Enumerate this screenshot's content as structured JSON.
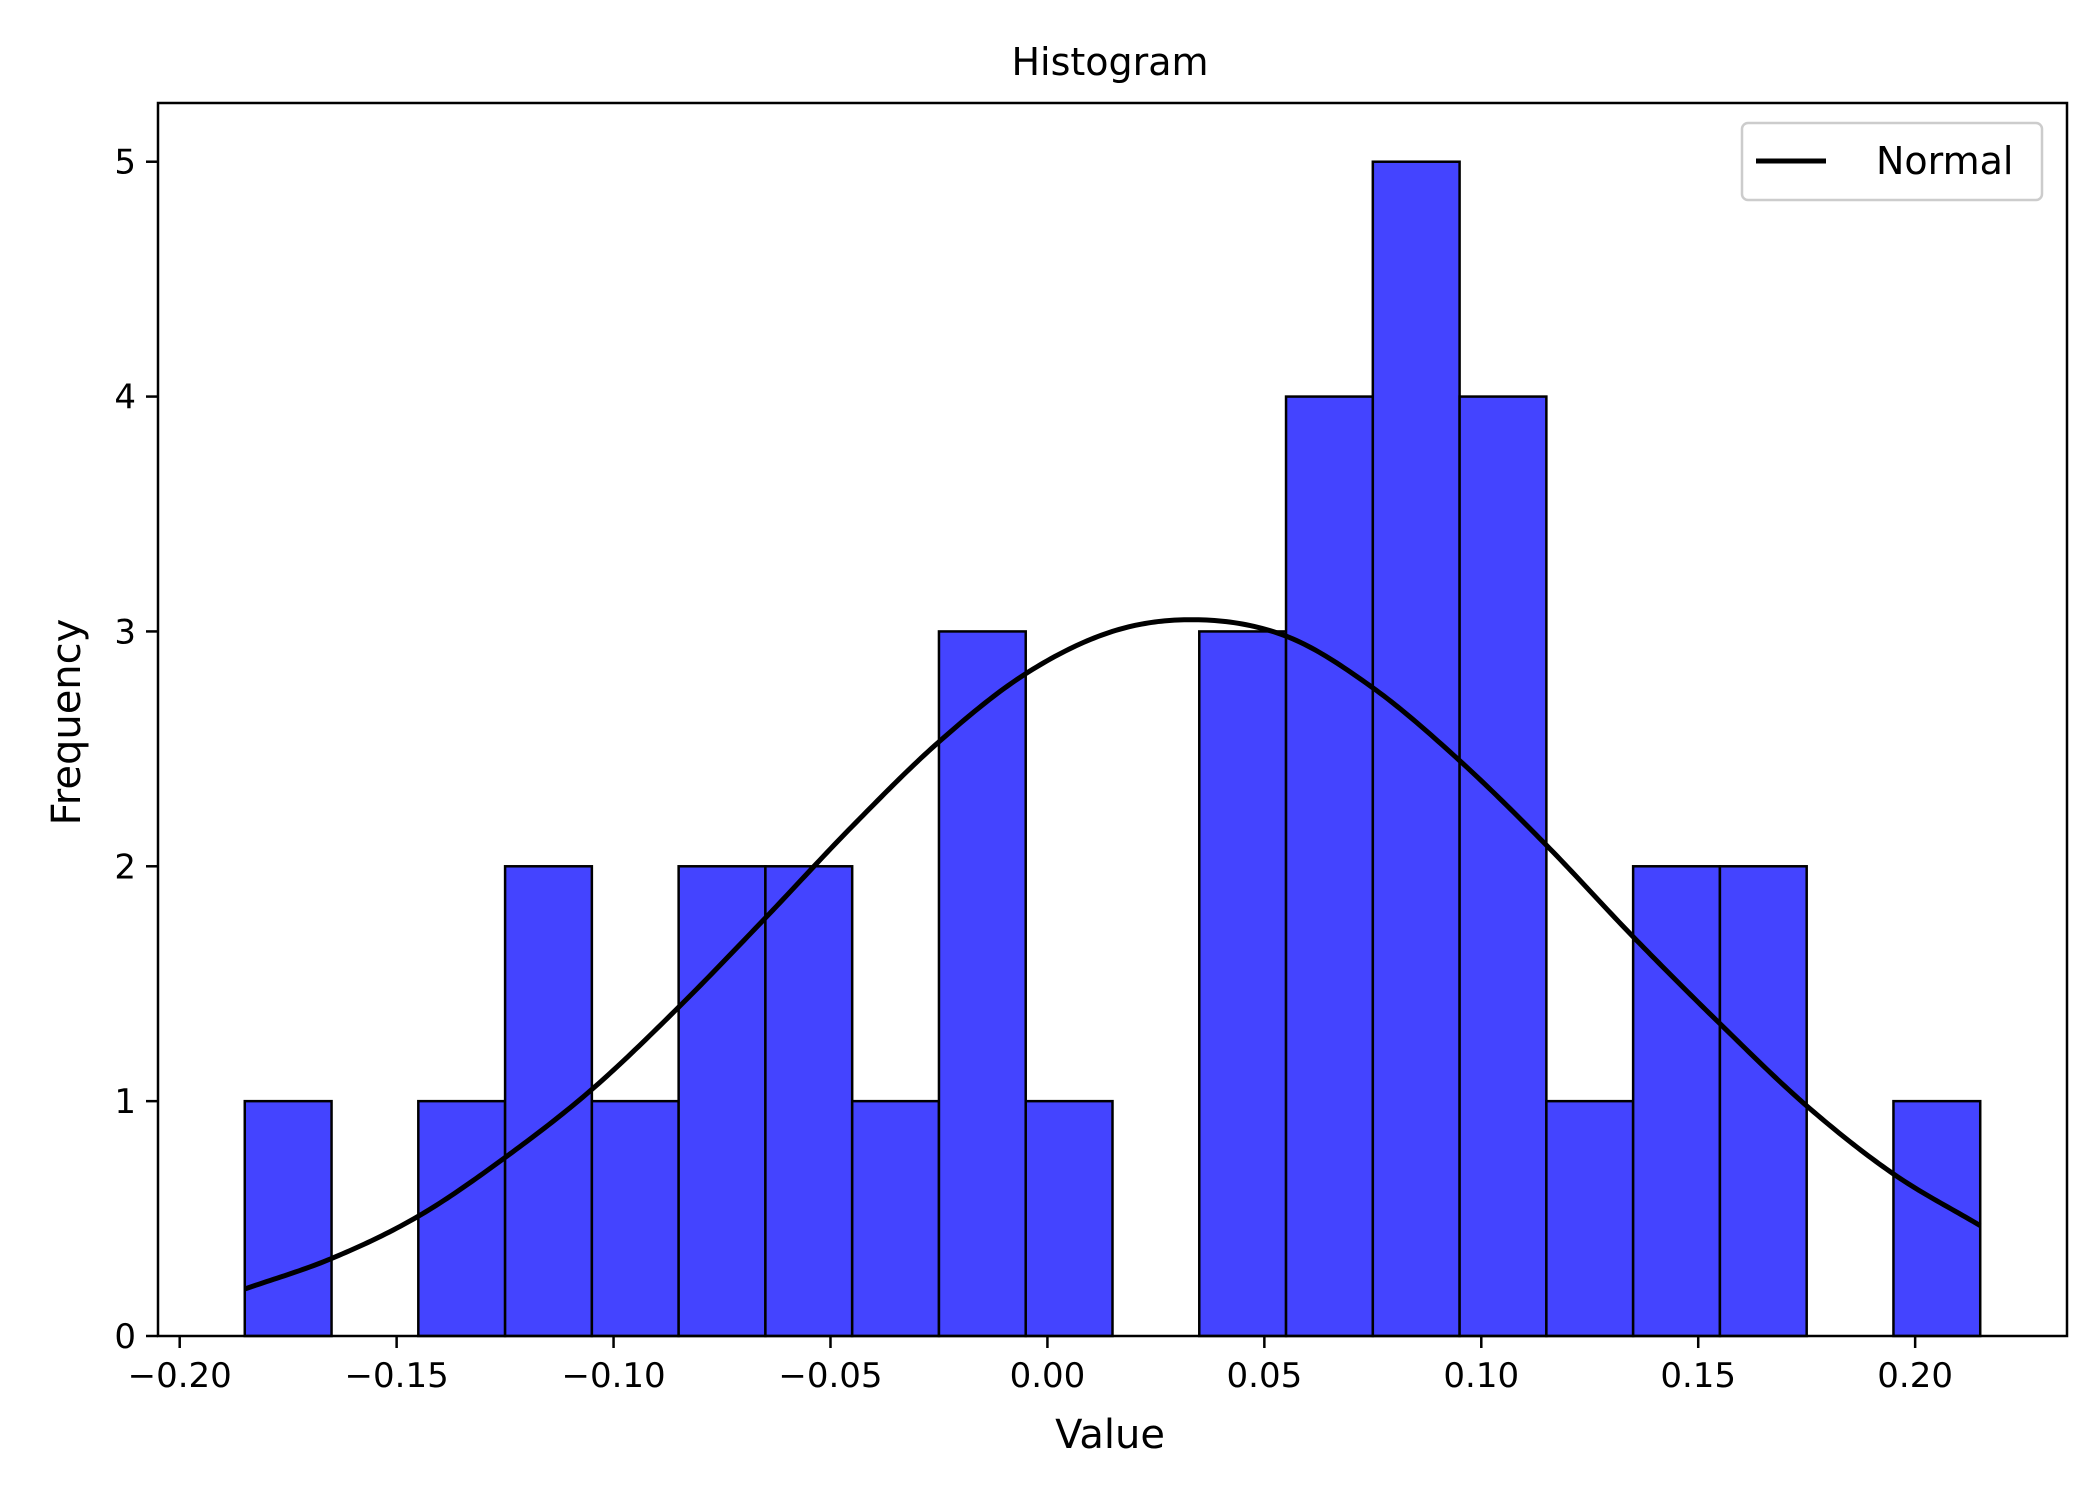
{
  "chart_data": {
    "type": "bar",
    "title": "Histogram",
    "xlabel": "Value",
    "ylabel": "Frequency",
    "xlim": [
      -0.205,
      0.235
    ],
    "ylim": [
      0,
      5.25
    ],
    "grid": false,
    "legend_placement": "top-right",
    "bar_color": "#4444ff",
    "bar_edge_color": "#000000",
    "bin_edges": [
      -0.185,
      -0.165,
      -0.145,
      -0.125,
      -0.105,
      -0.085,
      -0.065,
      -0.045,
      -0.025,
      -0.005,
      0.015,
      0.035,
      0.055,
      0.075,
      0.095,
      0.115,
      0.135,
      0.155,
      0.175,
      0.195,
      0.215
    ],
    "counts": [
      1,
      0,
      1,
      2,
      1,
      2,
      2,
      1,
      3,
      1,
      0,
      3,
      4,
      5,
      4,
      1,
      2,
      2,
      0,
      1
    ],
    "x_ticks": [
      -0.2,
      -0.15,
      -0.1,
      -0.05,
      0.0,
      0.05,
      0.1,
      0.15,
      0.2
    ],
    "x_tick_labels": [
      "−0.20",
      "−0.15",
      "−0.10",
      "−0.05",
      "0.00",
      "0.05",
      "0.10",
      "0.15",
      "0.20"
    ],
    "y_ticks": [
      0,
      1,
      2,
      3,
      4,
      5
    ],
    "y_tick_labels": [
      "0",
      "1",
      "2",
      "3",
      "4",
      "5"
    ],
    "series": [
      {
        "name": "Normal",
        "type": "line",
        "color": "#000000",
        "x": [
          -0.185,
          -0.165,
          -0.145,
          -0.125,
          -0.105,
          -0.085,
          -0.065,
          -0.045,
          -0.025,
          -0.005,
          0.015,
          0.033,
          0.055,
          0.075,
          0.095,
          0.115,
          0.135,
          0.155,
          0.175,
          0.195,
          0.215
        ],
        "y": [
          0.2,
          0.33,
          0.51,
          0.76,
          1.05,
          1.4,
          1.78,
          2.17,
          2.53,
          2.82,
          3.0,
          3.05,
          2.98,
          2.76,
          2.45,
          2.09,
          1.7,
          1.33,
          0.98,
          0.69,
          0.47
        ]
      }
    ]
  }
}
